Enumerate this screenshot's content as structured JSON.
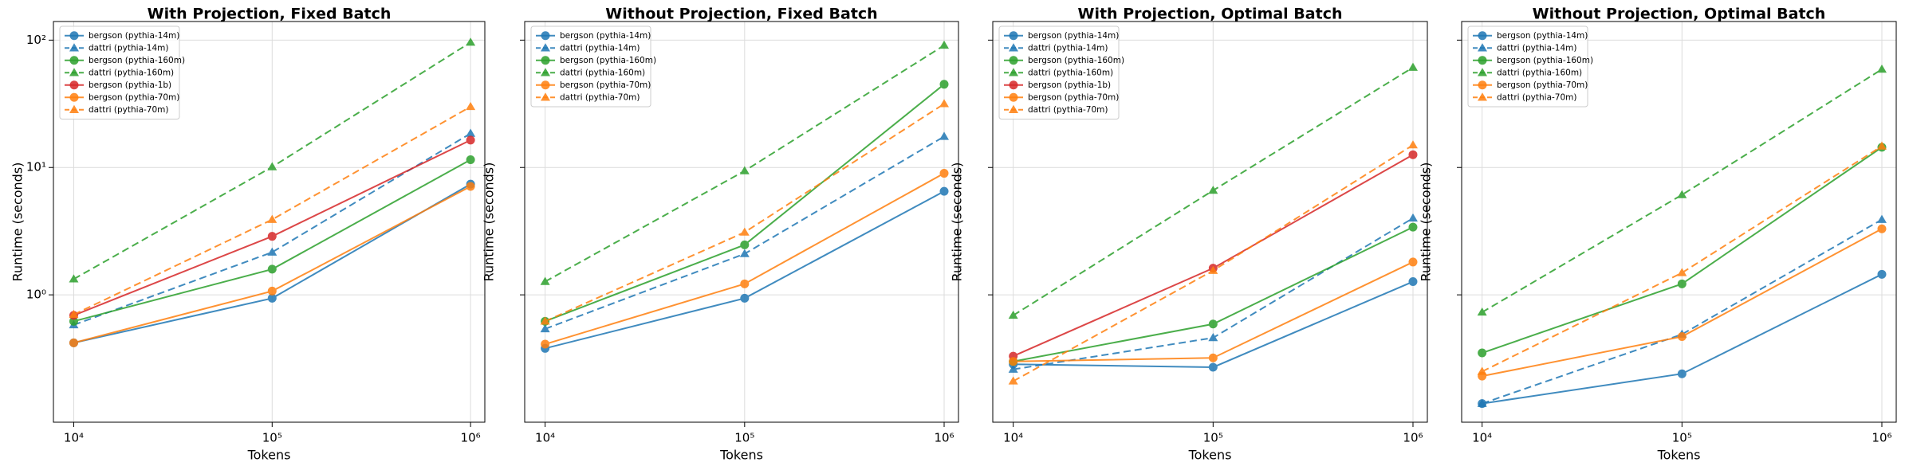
{
  "chart_data": [
    {
      "type": "line",
      "title": "With Projection, Fixed Batch",
      "xlabel": "Tokens",
      "ylabel": "Runtime (seconds)",
      "x": [
        10000,
        100000,
        1000000
      ],
      "xscale": "log",
      "yscale": "log",
      "grid": true,
      "legend": "upper left",
      "xlim": [
        7900,
        1180000
      ],
      "ylim": [
        0.1,
        140
      ],
      "xticks": [
        {
          "value": 10000,
          "label": "10⁴"
        },
        {
          "value": 100000,
          "label": "10⁵"
        },
        {
          "value": 1000000,
          "label": "10⁶"
        }
      ],
      "yticks": [
        {
          "value": 1,
          "label": "10⁰"
        },
        {
          "value": 10,
          "label": "10¹"
        },
        {
          "value": 100,
          "label": "10²"
        }
      ],
      "series": [
        {
          "name": "bergson (pythia-14m)",
          "color": "#1f77b4",
          "marker": "o",
          "linestyle": "solid",
          "values": [
            0.42,
            0.94,
            7.4
          ]
        },
        {
          "name": "dattri (pythia-14m)",
          "color": "#1f77b4",
          "marker": "^",
          "linestyle": "dashed",
          "values": [
            0.58,
            2.16,
            18.5
          ]
        },
        {
          "name": "bergson (pythia-160m)",
          "color": "#2ca02c",
          "marker": "o",
          "linestyle": "solid",
          "values": [
            0.62,
            1.59,
            11.5
          ]
        },
        {
          "name": "dattri (pythia-160m)",
          "color": "#2ca02c",
          "marker": "^",
          "linestyle": "dashed",
          "values": [
            1.33,
            10.1,
            96
          ]
        },
        {
          "name": "bergson (pythia-1b)",
          "color": "#d62728",
          "marker": "o",
          "linestyle": "solid",
          "values": [
            0.69,
            2.88,
            16.4
          ]
        },
        {
          "name": "bergson (pythia-70m)",
          "color": "#ff7f0e",
          "marker": "o",
          "linestyle": "solid",
          "values": [
            0.42,
            1.07,
            7.1
          ]
        },
        {
          "name": "dattri (pythia-70m)",
          "color": "#ff7f0e",
          "marker": "^",
          "linestyle": "dashed",
          "values": [
            0.7,
            3.9,
            30
          ]
        }
      ]
    },
    {
      "type": "line",
      "title": "Without Projection, Fixed Batch",
      "xlabel": "Tokens",
      "ylabel": "Runtime (seconds)",
      "x": [
        10000,
        100000,
        1000000
      ],
      "xscale": "log",
      "yscale": "log",
      "grid": true,
      "legend": "upper left",
      "xlim": [
        7900,
        1180000
      ],
      "ylim": [
        0.1,
        140
      ],
      "xticks": [
        {
          "value": 10000,
          "label": "10⁴"
        },
        {
          "value": 100000,
          "label": "10⁵"
        },
        {
          "value": 1000000,
          "label": "10⁶"
        }
      ],
      "yticks": [
        1,
        10,
        100
      ],
      "series": [
        {
          "name": "bergson (pythia-14m)",
          "color": "#1f77b4",
          "marker": "o",
          "linestyle": "solid",
          "values": [
            0.38,
            0.94,
            6.5
          ]
        },
        {
          "name": "dattri (pythia-14m)",
          "color": "#1f77b4",
          "marker": "^",
          "linestyle": "dashed",
          "values": [
            0.54,
            2.1,
            17.5
          ]
        },
        {
          "name": "bergson (pythia-160m)",
          "color": "#2ca02c",
          "marker": "o",
          "linestyle": "solid",
          "values": [
            0.62,
            2.47,
            45
          ]
        },
        {
          "name": "dattri (pythia-160m)",
          "color": "#2ca02c",
          "marker": "^",
          "linestyle": "dashed",
          "values": [
            1.27,
            9.4,
            91
          ]
        },
        {
          "name": "bergson (pythia-70m)",
          "color": "#ff7f0e",
          "marker": "o",
          "linestyle": "solid",
          "values": [
            0.41,
            1.22,
            9.0
          ]
        },
        {
          "name": "dattri (pythia-70m)",
          "color": "#ff7f0e",
          "marker": "^",
          "linestyle": "dashed",
          "values": [
            0.62,
            3.1,
            31.6
          ]
        }
      ]
    },
    {
      "type": "line",
      "title": "With Projection, Optimal Batch",
      "xlabel": "Tokens",
      "ylabel": "Runtime (seconds)",
      "x": [
        10000,
        100000,
        1000000
      ],
      "xscale": "log",
      "yscale": "log",
      "grid": true,
      "legend": "upper left",
      "xlim": [
        7900,
        1180000
      ],
      "ylim": [
        0.1,
        140
      ],
      "xticks": [
        {
          "value": 10000,
          "label": "10⁴"
        },
        {
          "value": 100000,
          "label": "10⁵"
        },
        {
          "value": 1000000,
          "label": "10⁶"
        }
      ],
      "yticks": [
        1,
        10,
        100
      ],
      "series": [
        {
          "name": "bergson (pythia-14m)",
          "color": "#1f77b4",
          "marker": "o",
          "linestyle": "solid",
          "values": [
            0.285,
            0.27,
            1.27
          ]
        },
        {
          "name": "dattri (pythia-14m)",
          "color": "#1f77b4",
          "marker": "^",
          "linestyle": "dashed",
          "values": [
            0.26,
            0.46,
            4.0
          ]
        },
        {
          "name": "bergson (pythia-160m)",
          "color": "#2ca02c",
          "marker": "o",
          "linestyle": "solid",
          "values": [
            0.3,
            0.59,
            3.4
          ]
        },
        {
          "name": "dattri (pythia-160m)",
          "color": "#2ca02c",
          "marker": "^",
          "linestyle": "dashed",
          "values": [
            0.69,
            6.6,
            61
          ]
        },
        {
          "name": "bergson (pythia-1b)",
          "color": "#d62728",
          "marker": "o",
          "linestyle": "solid",
          "values": [
            0.33,
            1.62,
            12.6
          ]
        },
        {
          "name": "bergson (pythia-70m)",
          "color": "#ff7f0e",
          "marker": "o",
          "linestyle": "solid",
          "values": [
            0.3,
            0.32,
            1.81
          ]
        },
        {
          "name": "dattri (pythia-70m)",
          "color": "#ff7f0e",
          "marker": "^",
          "linestyle": "dashed",
          "values": [
            0.21,
            1.55,
            15
          ]
        }
      ]
    },
    {
      "type": "line",
      "title": "Without Projection, Optimal Batch",
      "xlabel": "Tokens",
      "ylabel": "Runtime (seconds)",
      "x": [
        10000,
        100000,
        1000000
      ],
      "xscale": "log",
      "yscale": "log",
      "grid": true,
      "legend": "upper left",
      "xlim": [
        7900,
        1180000
      ],
      "ylim": [
        0.1,
        140
      ],
      "xticks": [
        {
          "value": 10000,
          "label": "10⁴"
        },
        {
          "value": 100000,
          "label": "10⁵"
        },
        {
          "value": 1000000,
          "label": "10⁶"
        }
      ],
      "yticks": [
        1,
        10,
        100
      ],
      "series": [
        {
          "name": "bergson (pythia-14m)",
          "color": "#1f77b4",
          "marker": "o",
          "linestyle": "solid",
          "values": [
            0.14,
            0.24,
            1.45
          ]
        },
        {
          "name": "dattri (pythia-14m)",
          "color": "#1f77b4",
          "marker": "^",
          "linestyle": "dashed",
          "values": [
            0.14,
            0.49,
            3.9
          ]
        },
        {
          "name": "bergson (pythia-160m)",
          "color": "#2ca02c",
          "marker": "o",
          "linestyle": "solid",
          "values": [
            0.35,
            1.22,
            14.4
          ]
        },
        {
          "name": "dattri (pythia-160m)",
          "color": "#2ca02c",
          "marker": "^",
          "linestyle": "dashed",
          "values": [
            0.73,
            6.1,
            59
          ]
        },
        {
          "name": "bergson (pythia-70m)",
          "color": "#ff7f0e",
          "marker": "o",
          "linestyle": "solid",
          "values": [
            0.23,
            0.47,
            3.3
          ]
        },
        {
          "name": "dattri (pythia-70m)",
          "color": "#ff7f0e",
          "marker": "^",
          "linestyle": "dashed",
          "values": [
            0.25,
            1.49,
            14.7
          ]
        }
      ]
    }
  ]
}
